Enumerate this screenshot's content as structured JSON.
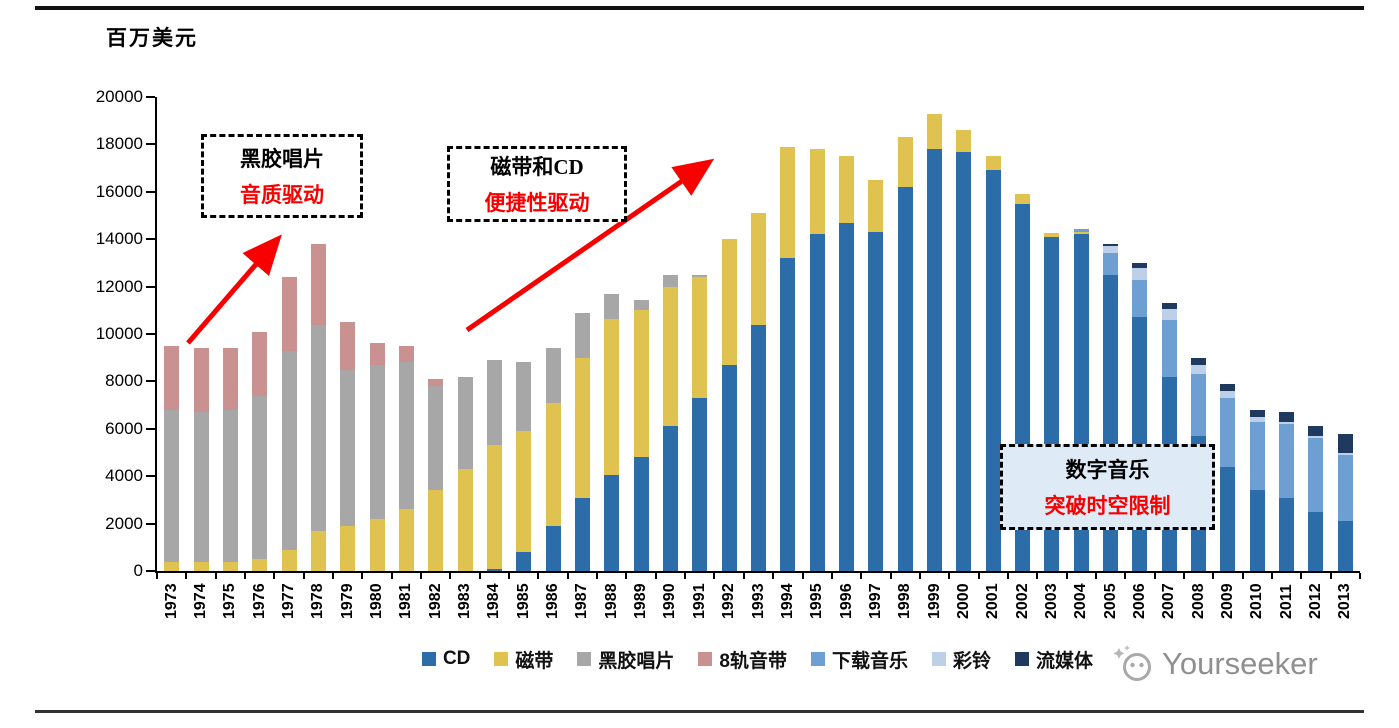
{
  "page": {
    "unit_label": "百万美元",
    "watermark_text": "Yourseeker",
    "accent_red": "#F80000",
    "annotation_fill": "#DEEAF6"
  },
  "annotations": [
    {
      "line1": "黑胶唱片",
      "line2": "音质驱动"
    },
    {
      "line1": "磁带和CD",
      "line2": "便捷性驱动"
    },
    {
      "line1": "数字音乐",
      "line2": "突破时空限制"
    }
  ],
  "chart_data": {
    "type": "bar",
    "stacked": true,
    "title": "",
    "ylabel": "百万美元",
    "xlabel": "",
    "ylim": [
      0,
      20000
    ],
    "ytick_step": 2000,
    "grid": false,
    "legend_position": "bottom",
    "categories": [
      "1973",
      "1974",
      "1975",
      "1976",
      "1977",
      "1978",
      "1979",
      "1980",
      "1981",
      "1982",
      "1983",
      "1984",
      "1985",
      "1986",
      "1987",
      "1988",
      "1989",
      "1990",
      "1991",
      "1992",
      "1993",
      "1994",
      "1995",
      "1996",
      "1997",
      "1998",
      "1999",
      "2000",
      "2001",
      "2002",
      "2003",
      "2004",
      "2005",
      "2006",
      "2007",
      "2008",
      "2009",
      "2010",
      "2011",
      "2012",
      "2013"
    ],
    "series": [
      {
        "id": "cd",
        "name": "CD",
        "color": "#2B6CA9",
        "values": [
          0,
          0,
          0,
          0,
          0,
          0,
          0,
          0,
          0,
          0,
          0,
          100,
          800,
          1900,
          3100,
          4050,
          4800,
          6100,
          7300,
          8700,
          10400,
          13200,
          14200,
          14700,
          14300,
          16200,
          17800,
          17700,
          16900,
          15500,
          14100,
          14200,
          12500,
          10700,
          8200,
          5700,
          4400,
          3400,
          3100,
          2500,
          2100
        ]
      },
      {
        "id": "cassette",
        "name": "磁带",
        "color": "#DFC24F",
        "values": [
          400,
          400,
          400,
          500,
          900,
          1700,
          1900,
          2200,
          2600,
          3400,
          4300,
          5200,
          5100,
          5200,
          5900,
          6600,
          6200,
          5900,
          5100,
          5300,
          4700,
          4700,
          3600,
          2800,
          2200,
          2100,
          1500,
          900,
          600,
          400,
          150,
          100,
          0,
          0,
          0,
          0,
          0,
          0,
          0,
          0,
          0
        ]
      },
      {
        "id": "vinyl",
        "name": "黑胶唱片",
        "color": "#A7A7A7",
        "values": [
          6400,
          6300,
          6400,
          6900,
          8400,
          8700,
          6600,
          6500,
          6200,
          4400,
          3900,
          3600,
          2900,
          2300,
          1900,
          1050,
          450,
          500,
          100,
          0,
          0,
          0,
          0,
          0,
          0,
          0,
          0,
          0,
          0,
          0,
          0,
          0,
          0,
          0,
          0,
          0,
          0,
          0,
          0,
          0,
          0
        ]
      },
      {
        "id": "8track",
        "name": "8轨音带",
        "color": "#C9918F",
        "values": [
          2700,
          2700,
          2600,
          2700,
          3100,
          3400,
          2000,
          900,
          700,
          300,
          0,
          0,
          0,
          0,
          0,
          0,
          0,
          0,
          0,
          0,
          0,
          0,
          0,
          0,
          0,
          0,
          0,
          0,
          0,
          0,
          0,
          0,
          0,
          0,
          0,
          0,
          0,
          0,
          0,
          0,
          0
        ]
      },
      {
        "id": "download",
        "name": "下载音乐",
        "color": "#6D9FD3",
        "values": [
          0,
          0,
          0,
          0,
          0,
          0,
          0,
          0,
          0,
          0,
          0,
          0,
          0,
          0,
          0,
          0,
          0,
          0,
          0,
          0,
          0,
          0,
          0,
          0,
          0,
          0,
          0,
          0,
          0,
          0,
          0,
          150,
          900,
          1600,
          2400,
          2600,
          2900,
          2900,
          3100,
          3100,
          2800
        ]
      },
      {
        "id": "ringtone",
        "name": "彩铃",
        "color": "#BDD0E7",
        "values": [
          0,
          0,
          0,
          0,
          0,
          0,
          0,
          0,
          0,
          0,
          0,
          0,
          0,
          0,
          0,
          0,
          0,
          0,
          0,
          0,
          0,
          0,
          0,
          0,
          0,
          0,
          0,
          0,
          0,
          0,
          0,
          0,
          300,
          500,
          450,
          400,
          300,
          200,
          100,
          100,
          100
        ]
      },
      {
        "id": "streaming",
        "name": "流媒体",
        "color": "#20395F",
        "values": [
          0,
          0,
          0,
          0,
          0,
          0,
          0,
          0,
          0,
          0,
          0,
          0,
          0,
          0,
          0,
          0,
          0,
          0,
          0,
          0,
          0,
          0,
          0,
          0,
          0,
          0,
          0,
          0,
          0,
          0,
          0,
          0,
          100,
          200,
          250,
          300,
          300,
          300,
          400,
          400,
          800
        ]
      }
    ]
  }
}
